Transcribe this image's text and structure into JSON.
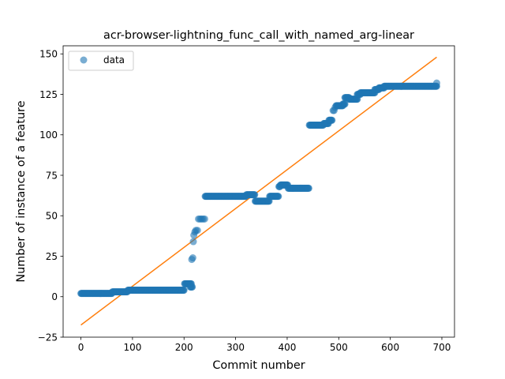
{
  "chart_data": {
    "type": "scatter",
    "title": "acr-browser-lightning_func_call_with_named_arg-linear",
    "xlabel": "Commit number",
    "ylabel": "Number of instance of a feature",
    "xlim": [
      -34.5,
      724.5
    ],
    "ylim": [
      -25,
      155
    ],
    "xticks": [
      0,
      100,
      200,
      300,
      400,
      500,
      600,
      700
    ],
    "yticks": [
      -25,
      0,
      25,
      50,
      75,
      100,
      125,
      150
    ],
    "grid": false,
    "legend": {
      "position": "top-left",
      "entries": [
        "data"
      ]
    },
    "colors": {
      "data": "#1f77b4",
      "fit": "#ff7f0e"
    },
    "series": [
      {
        "name": "data",
        "kind": "scatter",
        "segments": [
          {
            "x_start": 0,
            "x_end": 60,
            "y": 2
          },
          {
            "x_start": 61,
            "x_end": 90,
            "y": 3
          },
          {
            "x_start": 91,
            "x_end": 200,
            "y": 4
          },
          {
            "x_start": 201,
            "x_end": 214,
            "y": 8
          },
          {
            "x_start": 212,
            "x_end": 216,
            "y": 6
          },
          {
            "x_start": 241,
            "x_end": 320,
            "y": 62
          },
          {
            "x_start": 321,
            "x_end": 337,
            "y": 63
          },
          {
            "x_start": 338,
            "x_end": 365,
            "y": 59
          },
          {
            "x_start": 366,
            "x_end": 383,
            "y": 62
          },
          {
            "x_start": 384,
            "x_end": 386,
            "y": 68
          },
          {
            "x_start": 387,
            "x_end": 401,
            "y": 69
          },
          {
            "x_start": 402,
            "x_end": 411,
            "y": 67
          },
          {
            "x_start": 411,
            "x_end": 442,
            "y": 67
          },
          {
            "x_start": 443,
            "x_end": 470,
            "y": 106
          },
          {
            "x_start": 471,
            "x_end": 480,
            "y": 107
          },
          {
            "x_start": 481,
            "x_end": 487,
            "y": 109
          },
          {
            "x_start": 495,
            "x_end": 508,
            "y": 118
          },
          {
            "x_start": 508,
            "x_end": 512,
            "y": 119
          },
          {
            "x_start": 512,
            "x_end": 520,
            "y": 123
          },
          {
            "x_start": 520,
            "x_end": 536,
            "y": 122
          },
          {
            "x_start": 536,
            "x_end": 542,
            "y": 125
          },
          {
            "x_start": 542,
            "x_end": 570,
            "y": 126
          },
          {
            "x_start": 570,
            "x_end": 578,
            "y": 128
          },
          {
            "x_start": 578,
            "x_end": 588,
            "y": 129
          },
          {
            "x_start": 588,
            "x_end": 690,
            "y": 130
          }
        ],
        "points": [
          {
            "x": 215,
            "y": 23
          },
          {
            "x": 217,
            "y": 24
          },
          {
            "x": 218,
            "y": 34
          },
          {
            "x": 219,
            "y": 38
          },
          {
            "x": 221,
            "y": 40
          },
          {
            "x": 223,
            "y": 41
          },
          {
            "x": 226,
            "y": 41
          },
          {
            "x": 228,
            "y": 48
          },
          {
            "x": 231,
            "y": 48
          },
          {
            "x": 234,
            "y": 48
          },
          {
            "x": 237,
            "y": 48
          },
          {
            "x": 240,
            "y": 48
          },
          {
            "x": 489,
            "y": 115
          },
          {
            "x": 491,
            "y": 115
          },
          {
            "x": 493,
            "y": 117
          },
          {
            "x": 690,
            "y": 132
          }
        ]
      },
      {
        "name": "",
        "kind": "line",
        "x": [
          0,
          690
        ],
        "y": [
          -17.5,
          148
        ]
      }
    ]
  }
}
